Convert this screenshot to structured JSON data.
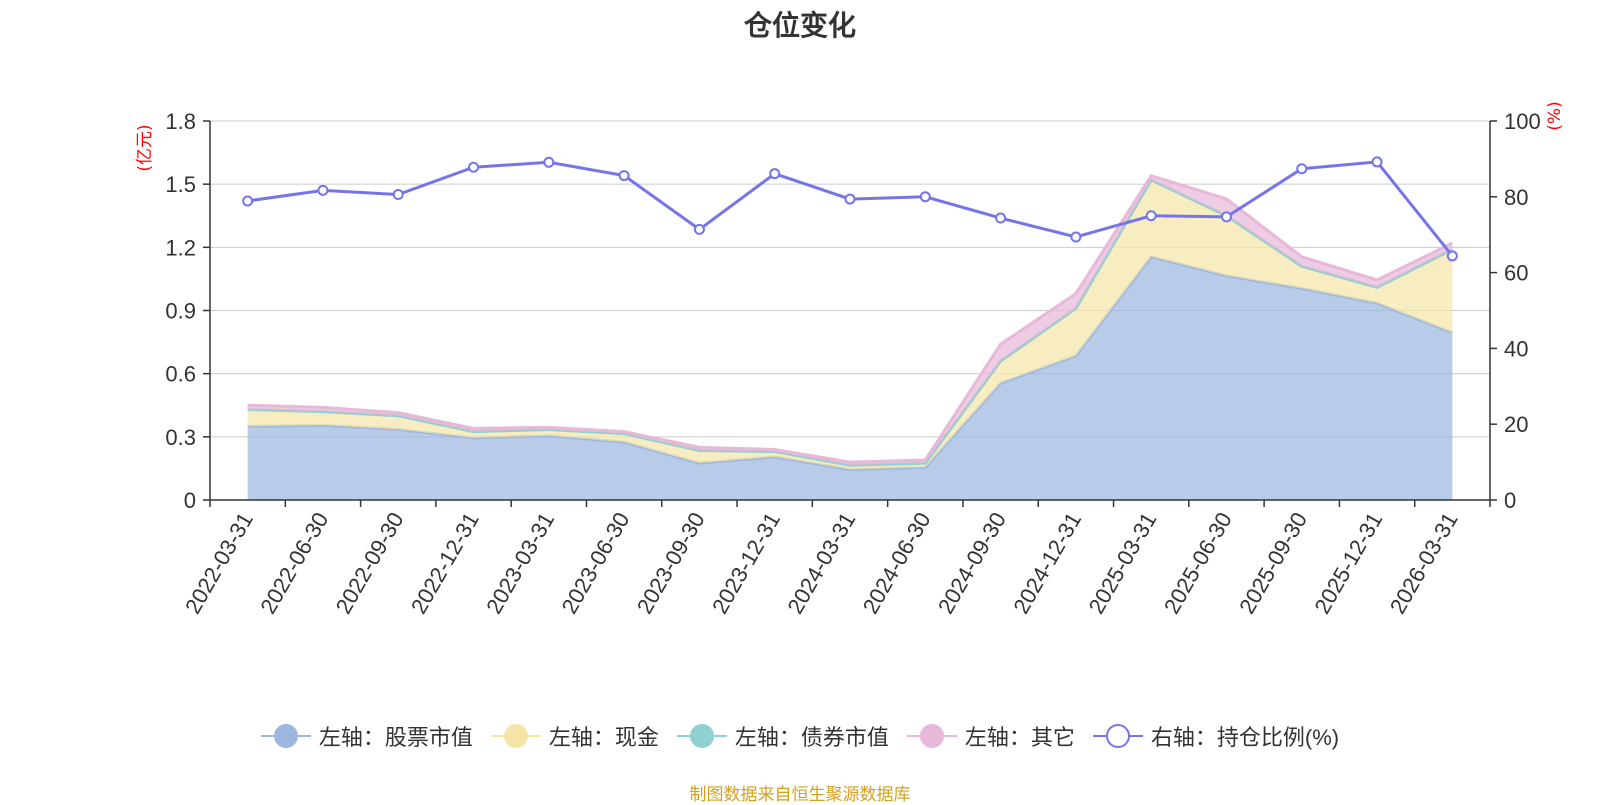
{
  "chart_data": {
    "type": "area",
    "title": "仓位变化",
    "x": [
      "2022-03-31",
      "2022-06-30",
      "2022-09-30",
      "2022-12-31",
      "2023-03-31",
      "2023-06-30",
      "2023-09-30",
      "2023-12-31",
      "2024-03-31",
      "2024-06-30",
      "2024-09-30",
      "2024-12-31",
      "2025-03-31",
      "2025-06-30",
      "2025-09-30",
      "2025-12-31",
      "2026-03-31"
    ],
    "left_axis": {
      "label": "(亿元)",
      "min": 0,
      "max": 1.8,
      "ticks": [
        "0",
        "0.3",
        "0.6",
        "0.9",
        "1.2",
        "1.5",
        "1.8"
      ]
    },
    "right_axis": {
      "label": "(%)",
      "min": 0,
      "max": 100,
      "ticks": [
        "0",
        "20",
        "40",
        "60",
        "80",
        "100"
      ]
    },
    "series": [
      {
        "name": "左轴：股票市值",
        "axis": "left",
        "stack": true,
        "color": "#9db8e0",
        "values": [
          0.35,
          0.355,
          0.335,
          0.295,
          0.305,
          0.275,
          0.175,
          0.205,
          0.145,
          0.155,
          0.555,
          0.685,
          1.155,
          1.065,
          1.005,
          0.935,
          0.795
        ]
      },
      {
        "name": "左轴：现金",
        "axis": "left",
        "stack": true,
        "color": "#f5e6a8",
        "values": [
          0.08,
          0.065,
          0.065,
          0.03,
          0.03,
          0.04,
          0.06,
          0.025,
          0.02,
          0.02,
          0.105,
          0.225,
          0.365,
          0.285,
          0.105,
          0.075,
          0.395
        ]
      },
      {
        "name": "左轴：债券市值",
        "axis": "left",
        "stack": true,
        "color": "#8fd0d0",
        "values": [
          0,
          0,
          0,
          0,
          0,
          0,
          0,
          0,
          0,
          0,
          0,
          0,
          0,
          0,
          0,
          0,
          0
        ]
      },
      {
        "name": "左轴：其它",
        "axis": "left",
        "stack": true,
        "color": "#e8b8d8",
        "values": [
          0.02,
          0.02,
          0.015,
          0.015,
          0.01,
          0.01,
          0.015,
          0.01,
          0.015,
          0.015,
          0.08,
          0.07,
          0.02,
          0.08,
          0.045,
          0.035,
          0.03
        ]
      },
      {
        "name": "右轴：持仓比例(%)",
        "axis": "right",
        "stack": false,
        "color": "#7575e8",
        "values": [
          78.9,
          81.7,
          80.6,
          87.8,
          89.1,
          85.6,
          71.4,
          86.1,
          79.4,
          80.0,
          74.4,
          69.4,
          75.0,
          74.7,
          87.4,
          89.2,
          64.4
        ]
      }
    ],
    "grid": true,
    "legend_position": "bottom"
  },
  "source_note": "制图数据来自恒生聚源数据库"
}
